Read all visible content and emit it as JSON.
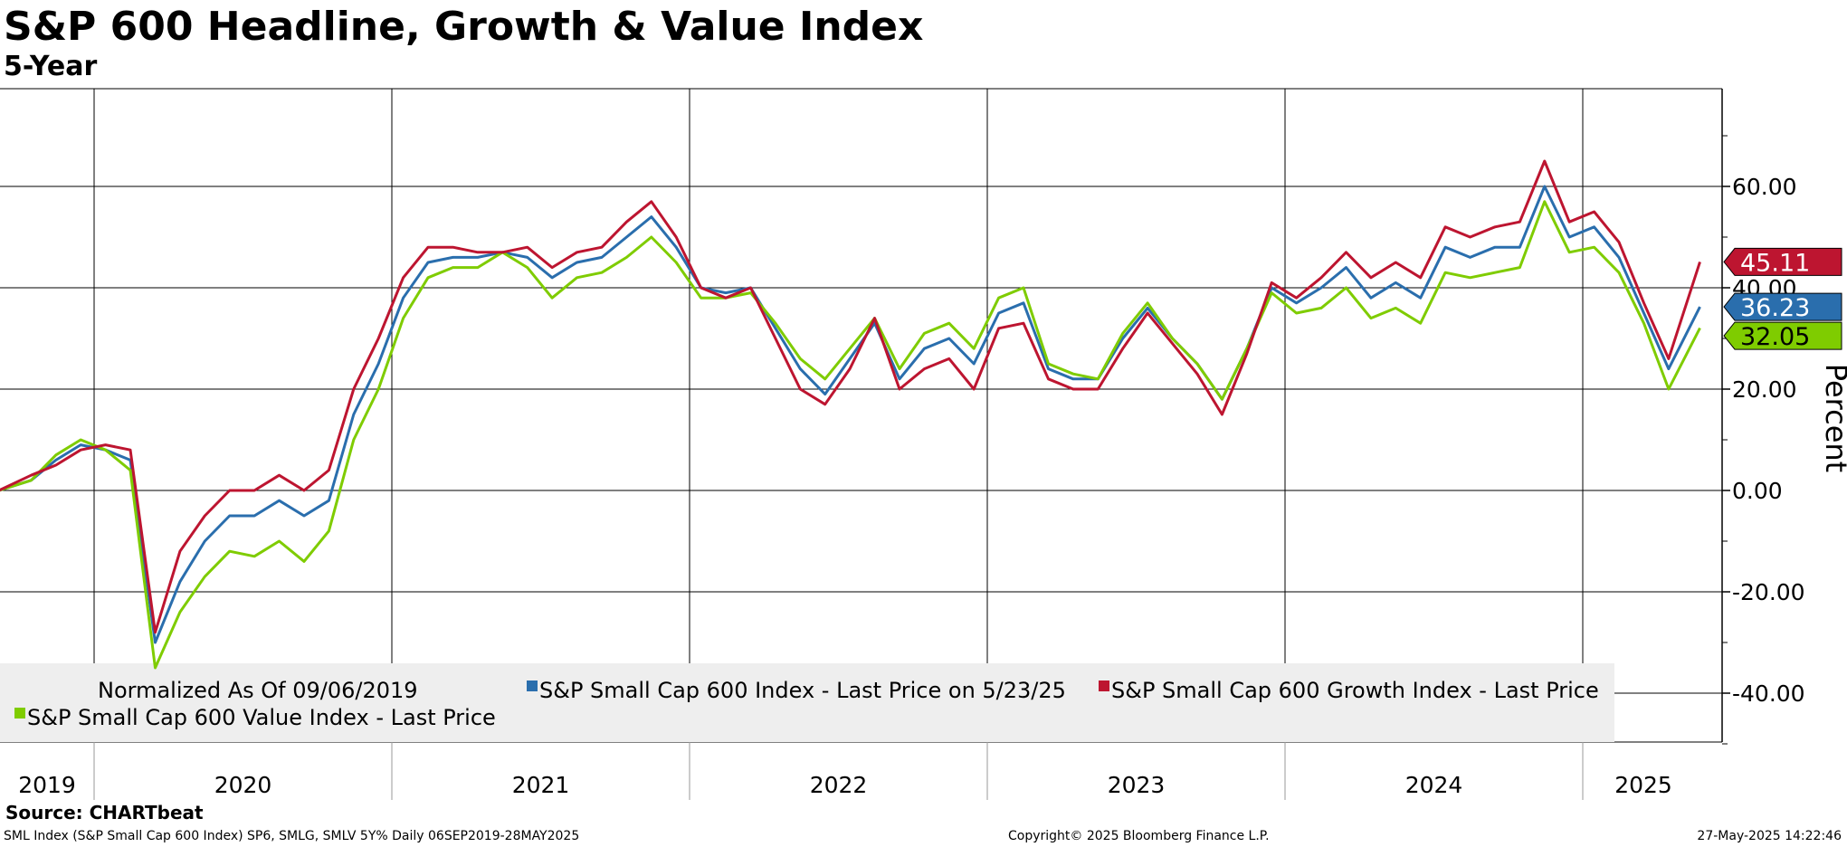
{
  "chart_data": {
    "type": "line",
    "title": "S&P 600 Headline, Growth & Value Index",
    "subtitle": "5-Year",
    "ylabel": "Percent",
    "ylim": [
      -50,
      72
    ],
    "yticks": [
      60,
      40,
      20,
      0,
      -20,
      -40
    ],
    "ytick_labels": [
      "60.00",
      "40.00",
      "20.00",
      "0.00",
      "-20.00",
      "-40.00"
    ],
    "xlim": [
      "2019-09-06",
      "2025-05-28"
    ],
    "xtick_labels": [
      "2019",
      "2020",
      "2021",
      "2022",
      "2023",
      "2024",
      "2025"
    ],
    "grid": true,
    "legend_placement": "bottom-left",
    "legend": {
      "note": "Normalized As Of 09/06/2019",
      "entries": [
        "S&P Small Cap 600 Index - Last Price on 5/23/25",
        "S&P Small Cap 600 Growth Index - Last Price",
        "S&P Small Cap 600 Value Index - Last Price"
      ]
    },
    "x": [
      "2019-09",
      "2019-10",
      "2019-11",
      "2019-12",
      "2020-01",
      "2020-02",
      "2020-03",
      "2020-04",
      "2020-05",
      "2020-06",
      "2020-07",
      "2020-08",
      "2020-09",
      "2020-10",
      "2020-11",
      "2020-12",
      "2021-01",
      "2021-02",
      "2021-03",
      "2021-04",
      "2021-05",
      "2021-06",
      "2021-07",
      "2021-08",
      "2021-09",
      "2021-10",
      "2021-11",
      "2021-12",
      "2022-01",
      "2022-02",
      "2022-03",
      "2022-04",
      "2022-05",
      "2022-06",
      "2022-07",
      "2022-08",
      "2022-09",
      "2022-10",
      "2022-11",
      "2022-12",
      "2023-01",
      "2023-02",
      "2023-03",
      "2023-04",
      "2023-05",
      "2023-06",
      "2023-07",
      "2023-08",
      "2023-09",
      "2023-10",
      "2023-11",
      "2023-12",
      "2024-01",
      "2024-02",
      "2024-03",
      "2024-04",
      "2024-05",
      "2024-06",
      "2024-07",
      "2024-08",
      "2024-09",
      "2024-10",
      "2024-11",
      "2024-12",
      "2025-01",
      "2025-02",
      "2025-03",
      "2025-04",
      "2025-05"
    ],
    "series": [
      {
        "name": "S&P Small Cap 600 Index",
        "color": "#2a6ead",
        "last": "36.23",
        "values": [
          0,
          2,
          6,
          9,
          8,
          6,
          -30,
          -18,
          -10,
          -5,
          -5,
          -2,
          -5,
          -2,
          15,
          25,
          38,
          45,
          46,
          46,
          47,
          46,
          42,
          45,
          46,
          50,
          54,
          48,
          40,
          39,
          40,
          32,
          24,
          19,
          26,
          33,
          22,
          28,
          30,
          25,
          35,
          37,
          24,
          22,
          22,
          30,
          36,
          30,
          25,
          18,
          28,
          40,
          37,
          40,
          44,
          38,
          41,
          38,
          48,
          46,
          48,
          48,
          60,
          50,
          52,
          46,
          35,
          24,
          36.23
        ]
      },
      {
        "name": "S&P Small Cap 600 Value Index",
        "color": "#7fcc00",
        "last": "32.05",
        "values": [
          0,
          2,
          7,
          10,
          8,
          4,
          -35,
          -24,
          -17,
          -12,
          -13,
          -10,
          -14,
          -8,
          10,
          20,
          34,
          42,
          44,
          44,
          47,
          44,
          38,
          42,
          43,
          46,
          50,
          45,
          38,
          38,
          39,
          33,
          26,
          22,
          28,
          34,
          24,
          31,
          33,
          28,
          38,
          40,
          25,
          23,
          22,
          31,
          37,
          30,
          25,
          18,
          28,
          39,
          35,
          36,
          40,
          34,
          36,
          33,
          43,
          42,
          43,
          44,
          57,
          47,
          48,
          43,
          33,
          20,
          32.05
        ]
      },
      {
        "name": "S&P Small Cap 600 Growth Index",
        "color": "#bd1530",
        "last": "45.11",
        "values": [
          0,
          3,
          5,
          8,
          9,
          8,
          -28,
          -12,
          -5,
          0,
          0,
          3,
          0,
          4,
          20,
          30,
          42,
          48,
          48,
          47,
          47,
          48,
          44,
          47,
          48,
          53,
          57,
          50,
          40,
          38,
          40,
          30,
          20,
          17,
          24,
          34,
          20,
          24,
          26,
          20,
          32,
          33,
          22,
          20,
          20,
          28,
          35,
          29,
          23,
          15,
          27,
          41,
          38,
          42,
          47,
          42,
          45,
          42,
          52,
          50,
          52,
          53,
          65,
          53,
          55,
          49,
          37,
          26,
          45.11
        ]
      }
    ]
  },
  "footer": {
    "source": "Source: CHARTbeat",
    "details": "SML Index (S&P Small Cap 600 Index) SP6, SMLG, SMLV 5Y%  Daily 06SEP2019-28MAY2025",
    "copyright": "Copyright© 2025 Bloomberg Finance L.P.",
    "timestamp": "27-May-2025 14:22:46"
  }
}
